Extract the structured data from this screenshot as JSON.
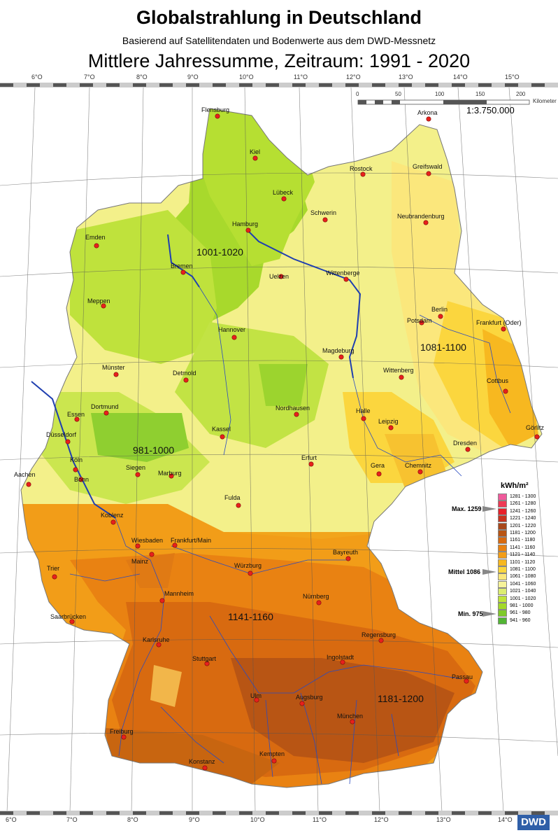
{
  "title": "Globalstrahlung in Deutschland",
  "subtitle": "Basierend auf Satellitendaten und Bodenwerte aus dem DWD-Messnetz",
  "period_title": "Mittlere Jahressumme, Zeitraum: 1991 - 2020",
  "lon_top": [
    "6°O",
    "7°O",
    "8°O",
    "9°O",
    "10°O",
    "11°O",
    "12°O",
    "13°O",
    "14°O",
    "15°O"
  ],
  "lon_bottom": [
    "6°O",
    "7°O",
    "8°O",
    "9°O",
    "10°O",
    "11°O",
    "12°O",
    "13°O",
    "14°O"
  ],
  "scale": {
    "ticks": [
      "0",
      "50",
      "100",
      "150",
      "200"
    ],
    "unit": "Kilometer",
    "ratio": "1:3.750.000"
  },
  "cities": [
    "Flensburg",
    "Kiel",
    "Rostock",
    "Greifswald",
    "Arkona",
    "Lübeck",
    "Schwerin",
    "Hamburg",
    "Neubrandenburg",
    "Emden",
    "Bremen",
    "Uelzen",
    "Wittenberge",
    "Meppen",
    "Berlin",
    "Potsdam",
    "Frankfurt (Oder)",
    "Hannover",
    "Magdeburg",
    "Münster",
    "Detmold",
    "Wittenberg",
    "Cottbus",
    "Dortmund",
    "Essen",
    "Nordhausen",
    "Halle",
    "Leipzig",
    "Görlitz",
    "Düsseldorf",
    "Kassel",
    "Dresden",
    "Köln",
    "Bonn",
    "Siegen",
    "Marburg",
    "Erfurt",
    "Gera",
    "Chemnitz",
    "Aachen",
    "Fulda",
    "Koblenz",
    "Wiesbaden",
    "Frankfurt/Main",
    "Mainz",
    "Bayreuth",
    "Würzburg",
    "Trier",
    "Mannheim",
    "Nürnberg",
    "Saarbrücken",
    "Regensburg",
    "Karlsruhe",
    "Ingolstadt",
    "Stuttgart",
    "Passau",
    "Ulm",
    "Augsburg",
    "München",
    "Freiburg",
    "Kempten",
    "Konstanz"
  ],
  "region_labels": [
    "1001-1020",
    "1081-1100",
    "981-1000",
    "1141-1160",
    "1181-1200"
  ],
  "legend": {
    "title": "kWh/m²",
    "classes": [
      {
        "label": "1281 - 1300",
        "color": "#f05a9b"
      },
      {
        "label": "1261 - 1280",
        "color": "#ee3a55"
      },
      {
        "label": "1241 - 1260",
        "color": "#e8202a"
      },
      {
        "label": "1221 - 1240",
        "color": "#c8331f"
      },
      {
        "label": "1201 - 1220",
        "color": "#a8471b"
      },
      {
        "label": "1181 - 1200",
        "color": "#b85514"
      },
      {
        "label": "1161 - 1180",
        "color": "#d86a10"
      },
      {
        "label": "1141 - 1160",
        "color": "#e98212"
      },
      {
        "label": "1121 - 1140",
        "color": "#f29d18"
      },
      {
        "label": "1101 - 1120",
        "color": "#f7b820"
      },
      {
        "label": "1081 - 1100",
        "color": "#fbd63e"
      },
      {
        "label": "1061 - 1080",
        "color": "#fbe77c"
      },
      {
        "label": "1041 - 1060",
        "color": "#f6f39a"
      },
      {
        "label": "1021 - 1040",
        "color": "#dced72"
      },
      {
        "label": "1001 - 1020",
        "color": "#bfe43a"
      },
      {
        "label": "981 - 1000",
        "color": "#a3d929"
      },
      {
        "label": "961 - 980",
        "color": "#7fca2a"
      },
      {
        "label": "941 - 960",
        "color": "#52b534"
      }
    ],
    "max_label": "Max. 1259",
    "mean_label": "Mittel 1086",
    "min_label": "Min. 975"
  },
  "logo": "DWD"
}
